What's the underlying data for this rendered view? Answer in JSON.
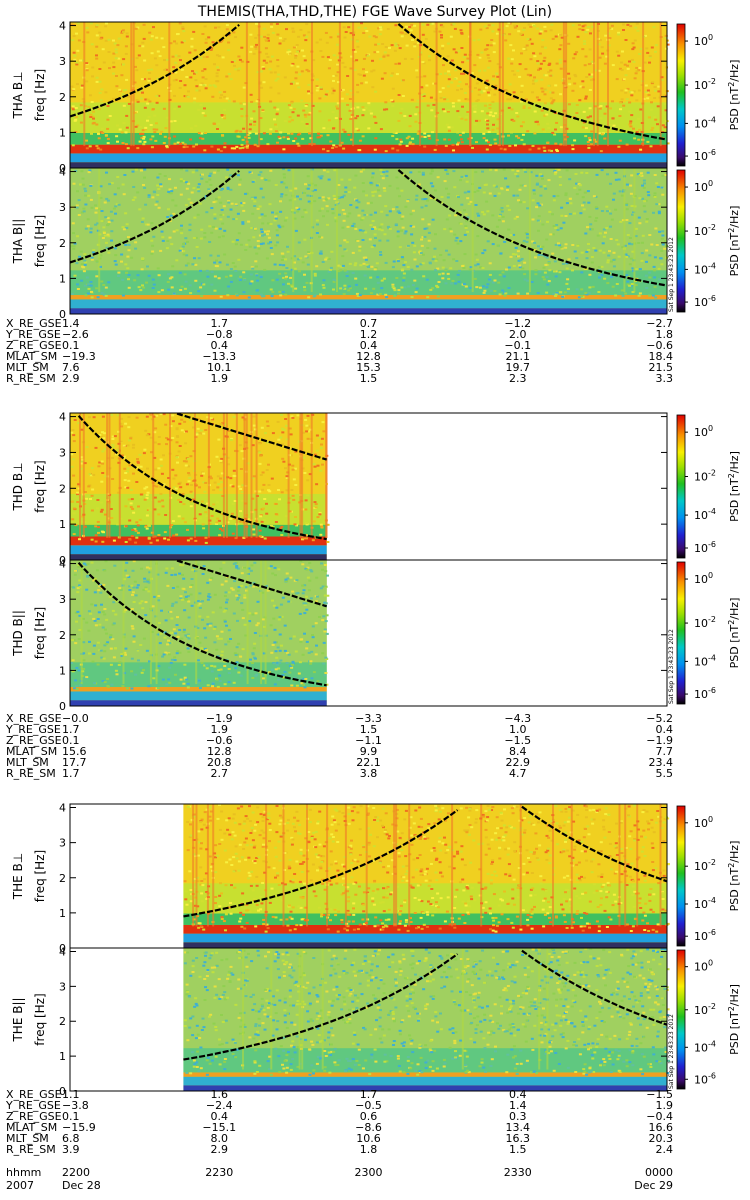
{
  "title": "THEMIS(THA,THD,THE) FGE Wave Survey Plot (Lin)",
  "stamp": "Sat Sep 1 23:43:23 2012",
  "colorbar": {
    "label_prefix": "PSD [nT",
    "label_sup": "2",
    "label_suffix": "/Hz]",
    "ticks": [
      {
        "base": "10",
        "exp": "0"
      },
      {
        "base": "10",
        "exp": "-2"
      },
      {
        "base": "10",
        "exp": "-4"
      },
      {
        "base": "10",
        "exp": "-6"
      }
    ]
  },
  "chart_data": [
    {
      "type": "heatmap",
      "probe": "THA",
      "panels": [
        {
          "ylabel": "THA B⊥",
          "unit_label": "freq [Hz]",
          "ylim": [
            0,
            4.1
          ],
          "yticks": [
            "0",
            "1",
            "2",
            "3",
            "4"
          ],
          "data_coverage": [
            0,
            1
          ],
          "style": "perp-a"
        },
        {
          "ylabel": "THA B||",
          "unit_label": "freq [Hz]",
          "ylim": [
            0,
            4.1
          ],
          "yticks": [
            "0",
            "1",
            "2",
            "3",
            "4"
          ],
          "data_coverage": [
            0,
            1
          ],
          "style": "par-a"
        }
      ],
      "ephemeris": [
        {
          "label": "X_RE_GSE",
          "values": [
            "1.4",
            "1.7",
            "0.7",
            "−1.2",
            "−2.7"
          ]
        },
        {
          "label": "Y_RE_GSE",
          "values": [
            "−2.6",
            "−0.8",
            "1.2",
            "2.0",
            "1.8"
          ]
        },
        {
          "label": "Z_RE_GSE",
          "values": [
            "0.1",
            "0.4",
            "0.4",
            "−0.1",
            "−0.6"
          ]
        },
        {
          "label": "MLAT_SM",
          "values": [
            "−19.3",
            "−13.3",
            "12.8",
            "21.1",
            "18.4"
          ]
        },
        {
          "label": "MLT_SM",
          "values": [
            "7.6",
            "10.1",
            "15.3",
            "19.7",
            "21.5"
          ]
        },
        {
          "label": "R_RE_SM",
          "values": [
            "2.9",
            "1.9",
            "1.5",
            "2.3",
            "3.3"
          ]
        }
      ]
    },
    {
      "type": "heatmap",
      "probe": "THD",
      "panels": [
        {
          "ylabel": "THD B⊥",
          "unit_label": "freq [Hz]",
          "ylim": [
            0,
            4.1
          ],
          "yticks": [
            "0",
            "1",
            "2",
            "3",
            "4"
          ],
          "data_coverage": [
            0,
            0.43
          ],
          "style": "perp-d"
        },
        {
          "ylabel": "THD B||",
          "unit_label": "freq [Hz]",
          "ylim": [
            0,
            4.1
          ],
          "yticks": [
            "0",
            "1",
            "2",
            "3",
            "4"
          ],
          "data_coverage": [
            0,
            0.43
          ],
          "style": "par-d"
        }
      ],
      "ephemeris": [
        {
          "label": "X_RE_GSE",
          "values": [
            "−0.0",
            "−1.9",
            "−3.3",
            "−4.3",
            "−5.2"
          ]
        },
        {
          "label": "Y_RE_GSE",
          "values": [
            "1.7",
            "1.9",
            "1.5",
            "1.0",
            "0.4"
          ]
        },
        {
          "label": "Z_RE_GSE",
          "values": [
            "0.1",
            "−0.6",
            "−1.1",
            "−1.5",
            "−1.9"
          ]
        },
        {
          "label": "MLAT_SM",
          "values": [
            "15.6",
            "12.8",
            "9.9",
            "8.4",
            "7.7"
          ]
        },
        {
          "label": "MLT_SM",
          "values": [
            "17.7",
            "20.8",
            "22.1",
            "22.9",
            "23.4"
          ]
        },
        {
          "label": "R_RE_SM",
          "values": [
            "1.7",
            "2.7",
            "3.8",
            "4.7",
            "5.5"
          ]
        }
      ]
    },
    {
      "type": "heatmap",
      "probe": "THE",
      "panels": [
        {
          "ylabel": "THE B⊥",
          "unit_label": "freq [Hz]",
          "ylim": [
            0,
            4.1
          ],
          "yticks": [
            "0",
            "1",
            "2",
            "3",
            "4"
          ],
          "data_coverage": [
            0.19,
            1
          ],
          "style": "perp-e"
        },
        {
          "ylabel": "THE B||",
          "unit_label": "freq [Hz]",
          "ylim": [
            0,
            4.1
          ],
          "yticks": [
            "0",
            "1",
            "2",
            "3",
            "4"
          ],
          "data_coverage": [
            0.19,
            1
          ],
          "style": "par-e"
        }
      ],
      "ephemeris": [
        {
          "label": "X_RE_GSE",
          "values": [
            "1.1",
            "1.6",
            "1.7",
            "0.4",
            "−1.5"
          ]
        },
        {
          "label": "Y_RE_GSE",
          "values": [
            "−3.8",
            "−2.4",
            "−0.5",
            "1.4",
            "1.9"
          ]
        },
        {
          "label": "Z_RE_GSE",
          "values": [
            "0.1",
            "0.4",
            "0.6",
            "0.3",
            "−0.4"
          ]
        },
        {
          "label": "MLAT_SM",
          "values": [
            "−15.9",
            "−15.1",
            "−8.6",
            "13.4",
            "16.6"
          ]
        },
        {
          "label": "MLT_SM",
          "values": [
            "6.8",
            "8.0",
            "10.6",
            "16.3",
            "20.3"
          ]
        },
        {
          "label": "R_RE_SM",
          "values": [
            "3.9",
            "2.9",
            "1.8",
            "1.5",
            "2.4"
          ]
        }
      ]
    }
  ],
  "time_axis": {
    "label": "hhmm",
    "year": "2007",
    "ticks": [
      "2200",
      "2230",
      "2300",
      "2330",
      "0000"
    ],
    "start_date": "Dec 28",
    "end_date": "Dec 29"
  }
}
